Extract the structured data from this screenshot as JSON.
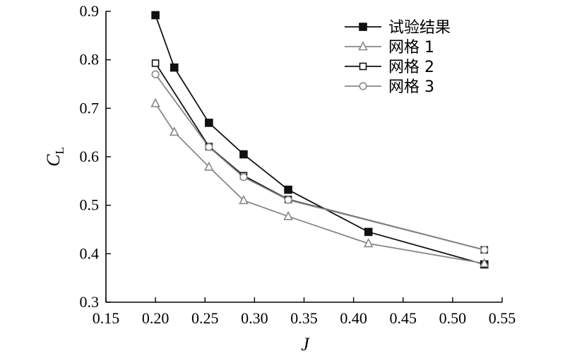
{
  "chart_data": {
    "type": "line",
    "title": "",
    "xlabel": "J",
    "ylabel": {
      "main": "C",
      "sub": "L"
    },
    "xlim": [
      0.15,
      0.55
    ],
    "ylim": [
      0.3,
      0.9
    ],
    "xticks": [
      "0.15",
      "0.20",
      "0.25",
      "0.30",
      "0.35",
      "0.40",
      "0.45",
      "0.50",
      "0.55"
    ],
    "yticks": [
      "0.3",
      "0.4",
      "0.5",
      "0.6",
      "0.7",
      "0.8",
      "0.9"
    ],
    "grid": false,
    "legend_position": "top-right",
    "series": [
      {
        "name": "试验结果",
        "marker": "filled-square",
        "color": "#111111",
        "x": [
          0.2,
          0.219,
          0.254,
          0.289,
          0.334,
          0.415,
          0.532
        ],
        "y": [
          0.892,
          0.784,
          0.67,
          0.605,
          0.532,
          0.445,
          0.378
        ]
      },
      {
        "name": "网格 1",
        "marker": "open-triangle",
        "color": "#888888",
        "x": [
          0.2,
          0.219,
          0.254,
          0.289,
          0.334,
          0.415,
          0.532
        ],
        "y": [
          0.71,
          0.651,
          0.579,
          0.51,
          0.477,
          0.421,
          0.38
        ]
      },
      {
        "name": "网格 2",
        "marker": "open-square",
        "color": "#111111",
        "x": [
          0.2,
          0.254,
          0.289,
          0.334,
          0.532
        ],
        "y": [
          0.793,
          0.621,
          0.561,
          0.512,
          0.408
        ]
      },
      {
        "name": "网格 3",
        "marker": "open-circle",
        "color": "#888888",
        "x": [
          0.2,
          0.254,
          0.289,
          0.334,
          0.532
        ],
        "y": [
          0.77,
          0.62,
          0.558,
          0.511,
          0.408
        ]
      }
    ]
  }
}
